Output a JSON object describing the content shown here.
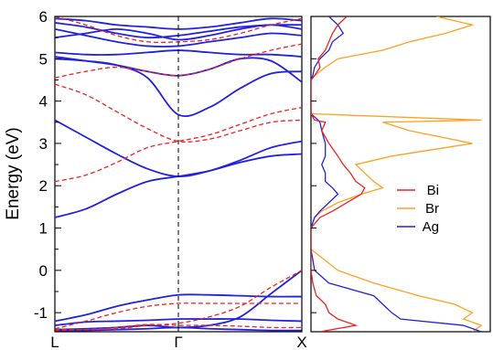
{
  "chart_data": [
    {
      "type": "line",
      "chart_kind": "band-structure",
      "ylabel": "Energy (eV)",
      "ylim": [
        -1.45,
        6
      ],
      "x_ticks": [
        "L",
        "Γ",
        "X"
      ],
      "x_range": [
        0,
        2
      ],
      "y_ticks": [
        -1,
        0,
        1,
        2,
        3,
        4,
        5,
        6
      ],
      "grid": false,
      "vertical_reference_line": {
        "x": 1,
        "style": "dashed"
      },
      "series": [
        {
          "style": "solid",
          "color": "#2222dd",
          "bands": [
            {
              "x": [
                0,
                0.25,
                0.5,
                0.75,
                1,
                1.25,
                1.5,
                1.75,
                2
              ],
              "y": [
                1.25,
                1.45,
                1.8,
                2.1,
                2.22,
                2.35,
                2.55,
                2.7,
                2.75
              ]
            },
            {
              "x": [
                0,
                0.25,
                0.5,
                0.75,
                1,
                1.25,
                1.5,
                1.75,
                2
              ],
              "y": [
                3.55,
                3.15,
                2.75,
                2.4,
                2.22,
                2.35,
                2.6,
                2.9,
                3.05
              ]
            },
            {
              "x": [
                0,
                0.25,
                0.5,
                0.75,
                1,
                1.25,
                1.5,
                1.75,
                2
              ],
              "y": [
                5.0,
                4.95,
                4.85,
                4.55,
                3.68,
                3.85,
                4.3,
                4.65,
                4.7
              ]
            },
            {
              "x": [
                0,
                0.25,
                0.5,
                0.75,
                1,
                1.25,
                1.5,
                1.75,
                2
              ],
              "y": [
                5.05,
                4.95,
                4.85,
                4.7,
                4.6,
                4.75,
                5.0,
                4.95,
                4.45
              ]
            },
            {
              "x": [
                0,
                0.25,
                0.5,
                0.75,
                1,
                1.25,
                1.5,
                1.75,
                2
              ],
              "y": [
                5.15,
                5.1,
                5.1,
                5.15,
                5.2,
                5.15,
                5.1,
                5.1,
                5.05
              ]
            },
            {
              "x": [
                0,
                0.25,
                0.5,
                0.75,
                1,
                1.25,
                1.5,
                1.75,
                2
              ],
              "y": [
                5.5,
                5.6,
                5.7,
                5.6,
                5.45,
                5.55,
                5.7,
                5.8,
                5.7
              ]
            },
            {
              "x": [
                0,
                0.25,
                0.5,
                0.75,
                1,
                1.25,
                1.5,
                1.75,
                2
              ],
              "y": [
                5.7,
                5.55,
                5.4,
                5.3,
                5.3,
                5.4,
                5.5,
                5.6,
                5.55
              ]
            },
            {
              "x": [
                0,
                0.25,
                0.5,
                0.75,
                1,
                1.25,
                1.5,
                1.75,
                2
              ],
              "y": [
                5.85,
                5.75,
                5.6,
                5.5,
                5.55,
                5.65,
                5.75,
                5.8,
                5.8
              ]
            },
            {
              "x": [
                0,
                0.25,
                0.5,
                0.75,
                1,
                1.25,
                1.5,
                1.75,
                2
              ],
              "y": [
                5.95,
                5.9,
                5.8,
                5.75,
                5.7,
                5.75,
                5.85,
                5.95,
                5.9
              ]
            },
            {
              "x": [
                0,
                0.25,
                0.5,
                0.75,
                1,
                1.25,
                1.5,
                1.75,
                2
              ],
              "y": [
                -1.2,
                -1.05,
                -0.85,
                -0.7,
                -0.58,
                -0.58,
                -0.6,
                -0.62,
                -0.62
              ]
            },
            {
              "x": [
                0,
                0.25,
                0.5,
                0.75,
                1,
                1.25,
                1.5,
                1.75,
                2
              ],
              "y": [
                -1.3,
                -1.22,
                -1.2,
                -1.18,
                -1.15,
                -1.15,
                -1.15,
                -1.18,
                -1.2
              ]
            },
            {
              "x": [
                0,
                0.25,
                0.5,
                0.75,
                1,
                1.25,
                1.5,
                1.75,
                2
              ],
              "y": [
                -1.4,
                -1.38,
                -1.35,
                -1.3,
                -1.35,
                -1.3,
                -1.1,
                -0.55,
                0.0
              ]
            },
            {
              "x": [
                0,
                0.25,
                0.5,
                0.75,
                1,
                1.25,
                1.5,
                1.75,
                2
              ],
              "y": [
                -1.42,
                -1.42,
                -1.4,
                -1.38,
                -1.35,
                -1.38,
                -1.4,
                -1.42,
                -1.42
              ]
            }
          ]
        },
        {
          "style": "dashed",
          "color": "#ee2222",
          "bands": [
            {
              "x": [
                0,
                0.25,
                0.5,
                0.75,
                1,
                1.25,
                1.5,
                1.75,
                2
              ],
              "y": [
                2.1,
                2.25,
                2.55,
                2.9,
                3.05,
                3.2,
                3.45,
                3.7,
                3.85
              ]
            },
            {
              "x": [
                0,
                0.25,
                0.5,
                0.75,
                1,
                1.25,
                1.5,
                1.75,
                2
              ],
              "y": [
                4.4,
                4.15,
                3.75,
                3.35,
                3.05,
                3.1,
                3.3,
                3.5,
                3.55
              ]
            },
            {
              "x": [
                0,
                0.25,
                0.5,
                0.75,
                1,
                1.25,
                1.5,
                1.75,
                2
              ],
              "y": [
                4.55,
                4.7,
                4.8,
                4.7,
                4.6,
                4.75,
                5.0,
                5.2,
                5.35
              ]
            },
            {
              "x": [
                0,
                0.25,
                0.5,
                0.75,
                1,
                1.25,
                1.5,
                1.75,
                2
              ],
              "y": [
                6.0,
                5.8,
                5.55,
                5.4,
                5.4,
                5.45,
                5.6,
                5.8,
                5.95
              ]
            },
            {
              "x": [
                0,
                0.25,
                0.5,
                0.75,
                1,
                1.25,
                1.5,
                1.75,
                2
              ],
              "y": [
                -1.38,
                -1.2,
                -1.0,
                -0.85,
                -0.78,
                -0.78,
                -0.78,
                -0.78,
                -0.78
              ]
            },
            {
              "x": [
                0,
                0.25,
                0.5,
                0.75,
                1,
                1.25,
                1.5,
                1.75,
                2
              ],
              "y": [
                -1.42,
                -1.4,
                -1.35,
                -1.28,
                -1.3,
                -1.3,
                -1.32,
                -1.35,
                -1.35
              ]
            },
            {
              "x": [
                0,
                0.25,
                0.5,
                0.75,
                1,
                1.25,
                1.5,
                1.75,
                2
              ],
              "y": [
                -1.4,
                -1.4,
                -1.38,
                -1.3,
                -1.25,
                -1.1,
                -0.85,
                -0.4,
                0.0
              ]
            }
          ]
        }
      ]
    },
    {
      "type": "line",
      "chart_kind": "density-of-states",
      "ylim": [
        -1.45,
        6
      ],
      "legend_placement": "right-middle",
      "series": [
        {
          "name": "Bi",
          "color": "#ee2222",
          "energy": [
            -1.45,
            -1.3,
            -1.15,
            -1.0,
            -0.8,
            -0.6,
            -0.3,
            0.0,
            0.5,
            1.0,
            1.25,
            1.4,
            1.6,
            1.8,
            1.95,
            2.1,
            2.3,
            2.5,
            2.7,
            3.0,
            3.3,
            3.5,
            3.55,
            3.7,
            4.0,
            4.2,
            4.5,
            4.6,
            4.8,
            5.0,
            5.2,
            5.4,
            5.6,
            5.8,
            6.0
          ],
          "dos": [
            0.05,
            0.25,
            0.15,
            0.1,
            0.08,
            0.03,
            0.01,
            0,
            0,
            0,
            0.05,
            0.12,
            0.2,
            0.28,
            0.3,
            0.25,
            0.22,
            0.18,
            0.15,
            0.1,
            0.06,
            0.08,
            0.02,
            0,
            0,
            0,
            0,
            0.02,
            0.05,
            0.04,
            0.08,
            0.1,
            0.12,
            0.15,
            0.2
          ]
        },
        {
          "name": "Br",
          "color": "#ffa020",
          "energy": [
            -1.45,
            -1.3,
            -1.15,
            -1.0,
            -0.8,
            -0.6,
            -0.3,
            0.0,
            0.5,
            1.0,
            1.25,
            1.4,
            1.6,
            1.8,
            1.95,
            2.1,
            2.3,
            2.5,
            2.7,
            3.0,
            3.3,
            3.5,
            3.55,
            3.7,
            4.0,
            4.2,
            4.5,
            4.6,
            4.8,
            5.0,
            5.2,
            5.4,
            5.6,
            5.8,
            6.0
          ],
          "dos": [
            0.9,
            0.95,
            0.85,
            0.9,
            0.8,
            0.6,
            0.35,
            0.15,
            0,
            0,
            0.02,
            0.06,
            0.15,
            0.28,
            0.4,
            0.35,
            0.3,
            0.25,
            0.45,
            0.9,
            0.55,
            0.4,
            0.95,
            0,
            0,
            0,
            0,
            0.02,
            0.08,
            0.15,
            0.4,
            0.55,
            0.75,
            0.9,
            0.7
          ]
        },
        {
          "name": "Ag",
          "color": "#2222dd",
          "energy": [
            -1.45,
            -1.3,
            -1.15,
            -1.0,
            -0.8,
            -0.6,
            -0.3,
            0.0,
            0.5,
            1.0,
            1.25,
            1.4,
            1.6,
            1.8,
            1.95,
            2.1,
            2.3,
            2.5,
            2.7,
            3.0,
            3.3,
            3.5,
            3.55,
            3.7,
            4.0,
            4.2,
            4.5,
            4.6,
            4.8,
            5.0,
            5.2,
            5.4,
            5.6,
            5.8,
            6.0
          ],
          "dos": [
            0.95,
            0.85,
            0.5,
            0.45,
            0.4,
            0.35,
            0.1,
            0.02,
            0,
            0,
            0.02,
            0.05,
            0.1,
            0.15,
            0.12,
            0.08,
            0.08,
            0.06,
            0.08,
            0.08,
            0.06,
            0.05,
            0.04,
            0,
            0,
            0,
            0,
            0.01,
            0.02,
            0.05,
            0.1,
            0.12,
            0.18,
            0.15,
            0.1
          ]
        }
      ]
    }
  ]
}
